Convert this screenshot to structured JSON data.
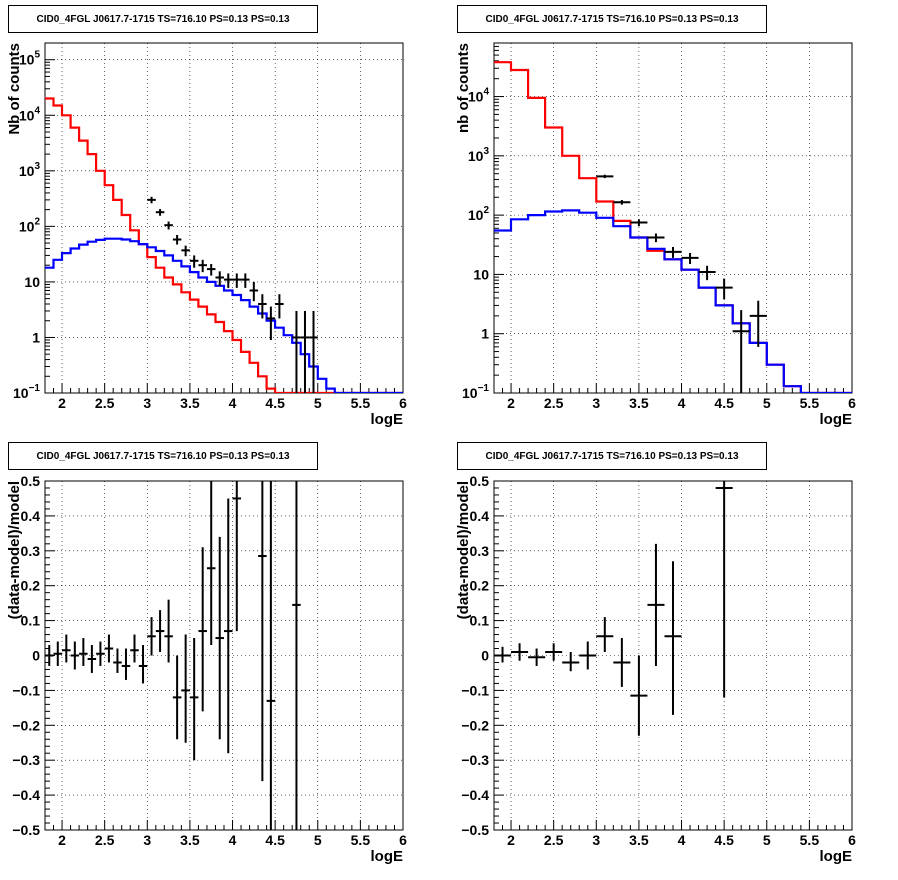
{
  "chart_data": [
    {
      "id": "top-left",
      "type": "line",
      "title": "CID0_4FGL J0617.7-1715 TS=716.10 PS=0.13 PS=0.13",
      "xlabel": "logE",
      "ylabel": "Nb of counts",
      "xlim": [
        1.8,
        6.0
      ],
      "ylim": [
        0.1,
        200000
      ],
      "yscale": "log",
      "grid": true,
      "xticks": [
        "2",
        "2.5",
        "3",
        "3.5",
        "4",
        "4.5",
        "5",
        "5.5",
        "6"
      ],
      "yticks": [
        {
          "v": 0.1,
          "base": "10",
          "exp": "−1"
        },
        {
          "v": 1,
          "label": "1"
        },
        {
          "v": 10,
          "label": "10"
        },
        {
          "v": 100,
          "base": "10",
          "exp": "2"
        },
        {
          "v": 1000,
          "base": "10",
          "exp": "3"
        },
        {
          "v": 10000,
          "base": "10",
          "exp": "4"
        },
        {
          "v": 100000,
          "base": "10",
          "exp": "5"
        }
      ],
      "series": [
        {
          "color": "#ff0000",
          "style": "step",
          "bins": 0.1,
          "x0": 1.8,
          "values": [
            20000,
            15000,
            10000,
            6000,
            3500,
            2000,
            1000,
            550,
            300,
            160,
            85,
            48,
            28,
            18,
            12,
            9,
            6.5,
            4.8,
            3.6,
            2.6,
            1.9,
            1.3,
            0.9,
            0.55,
            0.35,
            0.2,
            0.12,
            0.1,
            0.1,
            0.1,
            0.1,
            0.1,
            0.1,
            0.1,
            0.1,
            0.1,
            0.1,
            0.1,
            0.1,
            0.1,
            0.1,
            0.1
          ]
        },
        {
          "color": "#0000ff",
          "style": "step",
          "bins": 0.1,
          "x0": 1.8,
          "values": [
            18,
            25,
            33,
            40,
            47,
            53,
            57,
            60,
            60,
            58,
            54,
            48,
            42,
            36,
            30,
            24,
            19,
            15,
            12,
            10,
            8.5,
            7,
            5.8,
            4.7,
            3.6,
            2.7,
            2.0,
            1.5,
            1.1,
            0.8,
            0.5,
            0.3,
            0.18,
            0.12,
            0.1,
            0.1,
            0.1,
            0.1,
            0.1,
            0.1,
            0.1,
            0.1
          ]
        },
        {
          "color": "#000000",
          "style": "errorbar",
          "xerr": 0.05,
          "points": [
            [
              3.05,
              300,
              260,
              340
            ],
            [
              3.15,
              180,
              155,
              205
            ],
            [
              3.25,
              105,
              88,
              122
            ],
            [
              3.35,
              58,
              47,
              70
            ],
            [
              3.45,
              37,
              29,
              45
            ],
            [
              3.55,
              24,
              18,
              30
            ],
            [
              3.65,
              20,
              15,
              25
            ],
            [
              3.75,
              17,
              13,
              21
            ],
            [
              3.85,
              12,
              8.5,
              15.5
            ],
            [
              3.95,
              11,
              7.8,
              14.2
            ],
            [
              4.05,
              11,
              7.8,
              14.2
            ],
            [
              4.15,
              11,
              7.8,
              14.2
            ],
            [
              4.25,
              7,
              4.5,
              10
            ],
            [
              4.35,
              4,
              2.2,
              6
            ],
            [
              4.45,
              2.2,
              0.9,
              3.6
            ],
            [
              4.55,
              4,
              2.2,
              6
            ],
            [
              4.75,
              1,
              0.1,
              3
            ],
            [
              4.85,
              1,
              0.1,
              3
            ],
            [
              4.95,
              1,
              0.1,
              3
            ]
          ]
        }
      ]
    },
    {
      "id": "top-right",
      "type": "line",
      "title": "CID0_4FGL J0617.7-1715 TS=716.10 PS=0.13 PS=0.13",
      "xlabel": "logE",
      "ylabel": "nb of counts",
      "xlim": [
        1.8,
        6.0
      ],
      "ylim": [
        0.1,
        80000
      ],
      "yscale": "log",
      "grid": true,
      "xticks": [
        "2",
        "2.5",
        "3",
        "3.5",
        "4",
        "4.5",
        "5",
        "5.5",
        "6"
      ],
      "yticks": [
        {
          "v": 0.1,
          "base": "10",
          "exp": "−1"
        },
        {
          "v": 1,
          "label": "1"
        },
        {
          "v": 10,
          "label": "10"
        },
        {
          "v": 100,
          "base": "10",
          "exp": "2"
        },
        {
          "v": 1000,
          "base": "10",
          "exp": "3"
        },
        {
          "v": 10000,
          "base": "10",
          "exp": "4"
        }
      ],
      "series": [
        {
          "color": "#ff0000",
          "style": "step",
          "bins": 0.2,
          "x0": 1.8,
          "values": [
            38000,
            28000,
            9500,
            3000,
            1000,
            420,
            170,
            80,
            42,
            25,
            18,
            12,
            6,
            3,
            1.5,
            0.7,
            0.3,
            0.13,
            0.1,
            0.1,
            0.1
          ]
        },
        {
          "color": "#0000ff",
          "style": "step",
          "bins": 0.2,
          "x0": 1.8,
          "values": [
            55,
            85,
            100,
            115,
            120,
            110,
            90,
            65,
            42,
            27,
            18,
            12,
            6,
            3,
            1.5,
            0.7,
            0.3,
            0.13,
            0.1,
            0.1,
            0.1
          ]
        },
        {
          "color": "#000000",
          "style": "errorbar",
          "xerr": 0.1,
          "points": [
            [
              3.1,
              450,
              420,
              480
            ],
            [
              3.3,
              165,
              150,
              180
            ],
            [
              3.5,
              75,
              65,
              85
            ],
            [
              3.7,
              42,
              35,
              49
            ],
            [
              3.9,
              24,
              19,
              29
            ],
            [
              4.1,
              19,
              15,
              23
            ],
            [
              4.3,
              11,
              8,
              14
            ],
            [
              4.5,
              6,
              3.8,
              8.5
            ],
            [
              4.7,
              1.1,
              0.1,
              2.5
            ],
            [
              4.9,
              2,
              0.6,
              3.6
            ]
          ]
        }
      ]
    },
    {
      "id": "bottom-left",
      "type": "scatter",
      "title": "CID0_4FGL J0617.7-1715 TS=716.10 PS=0.13 PS=0.13",
      "xlabel": "logE",
      "ylabel": "(data-model)/model",
      "xlim": [
        1.8,
        6.0
      ],
      "ylim": [
        -0.5,
        0.5
      ],
      "yscale": "linear",
      "grid": true,
      "xticks": [
        "2",
        "2.5",
        "3",
        "3.5",
        "4",
        "4.5",
        "5",
        "5.5",
        "6"
      ],
      "yticks": [
        {
          "v": -0.5,
          "label": "−0.5"
        },
        {
          "v": -0.4,
          "label": "−0.4"
        },
        {
          "v": -0.3,
          "label": "−0.3"
        },
        {
          "v": -0.2,
          "label": "−0.2"
        },
        {
          "v": -0.1,
          "label": "−0.1"
        },
        {
          "v": 0,
          "label": "0"
        },
        {
          "v": 0.1,
          "label": "0.1"
        },
        {
          "v": 0.2,
          "label": "0.2"
        },
        {
          "v": 0.3,
          "label": "0.3"
        },
        {
          "v": 0.4,
          "label": "0.4"
        },
        {
          "v": 0.5,
          "label": "0.5"
        }
      ],
      "series": [
        {
          "color": "#000000",
          "style": "errorbar",
          "xerr": 0.05,
          "points": [
            [
              1.85,
              0.0,
              -0.03,
              0.03
            ],
            [
              1.95,
              0.005,
              -0.03,
              0.04
            ],
            [
              2.05,
              0.015,
              -0.02,
              0.06
            ],
            [
              2.15,
              0.0,
              -0.04,
              0.04
            ],
            [
              2.25,
              0.005,
              -0.03,
              0.05
            ],
            [
              2.35,
              -0.01,
              -0.05,
              0.03
            ],
            [
              2.45,
              0.005,
              -0.03,
              0.04
            ],
            [
              2.55,
              0.02,
              -0.02,
              0.06
            ],
            [
              2.65,
              -0.02,
              -0.05,
              0.02
            ],
            [
              2.75,
              -0.03,
              -0.07,
              0.02
            ],
            [
              2.85,
              0.015,
              -0.02,
              0.06
            ],
            [
              2.95,
              -0.03,
              -0.08,
              0.03
            ],
            [
              3.05,
              0.055,
              0.0,
              0.11
            ],
            [
              3.15,
              0.07,
              0.01,
              0.13
            ],
            [
              3.25,
              0.055,
              -0.02,
              0.16
            ],
            [
              3.35,
              -0.12,
              -0.24,
              0.0
            ],
            [
              3.45,
              -0.1,
              -0.25,
              0.06
            ],
            [
              3.55,
              -0.12,
              -0.3,
              0.05
            ],
            [
              3.65,
              0.07,
              -0.16,
              0.31
            ],
            [
              3.75,
              0.25,
              0.03,
              0.5
            ],
            [
              3.85,
              0.05,
              -0.24,
              0.34
            ],
            [
              3.95,
              0.07,
              -0.28,
              0.45
            ],
            [
              4.05,
              0.45,
              0.07,
              0.5
            ],
            [
              4.35,
              0.285,
              -0.36,
              0.5
            ],
            [
              4.45,
              -0.13,
              -0.5,
              0.5
            ],
            [
              4.75,
              0.145,
              -0.5,
              0.5
            ]
          ]
        }
      ]
    },
    {
      "id": "bottom-right",
      "type": "scatter",
      "title": "CID0_4FGL J0617.7-1715 TS=716.10 PS=0.13 PS=0.13",
      "xlabel": "logE",
      "ylabel": "(data-model)/model",
      "xlim": [
        1.8,
        6.0
      ],
      "ylim": [
        -0.5,
        0.5
      ],
      "yscale": "linear",
      "grid": true,
      "xticks": [
        "2",
        "2.5",
        "3",
        "3.5",
        "4",
        "4.5",
        "5",
        "5.5",
        "6"
      ],
      "yticks": [
        {
          "v": -0.5,
          "label": "−0.5"
        },
        {
          "v": -0.4,
          "label": "−0.4"
        },
        {
          "v": -0.3,
          "label": "−0.3"
        },
        {
          "v": -0.2,
          "label": "−0.2"
        },
        {
          "v": -0.1,
          "label": "−0.1"
        },
        {
          "v": 0,
          "label": "0"
        },
        {
          "v": 0.1,
          "label": "0.1"
        },
        {
          "v": 0.2,
          "label": "0.2"
        },
        {
          "v": 0.3,
          "label": "0.3"
        },
        {
          "v": 0.4,
          "label": "0.4"
        },
        {
          "v": 0.5,
          "label": "0.5"
        }
      ],
      "series": [
        {
          "color": "#000000",
          "style": "errorbar",
          "xerr": 0.1,
          "points": [
            [
              1.9,
              0.0,
              -0.02,
              0.025
            ],
            [
              2.1,
              0.01,
              -0.015,
              0.035
            ],
            [
              2.3,
              -0.005,
              -0.03,
              0.02
            ],
            [
              2.5,
              0.01,
              -0.015,
              0.035
            ],
            [
              2.7,
              -0.02,
              -0.045,
              0.01
            ],
            [
              2.9,
              0.0,
              -0.04,
              0.04
            ],
            [
              3.1,
              0.055,
              0.01,
              0.11
            ],
            [
              3.3,
              -0.02,
              -0.09,
              0.05
            ],
            [
              3.5,
              -0.115,
              -0.23,
              0.0
            ],
            [
              3.7,
              0.145,
              -0.03,
              0.32
            ],
            [
              3.9,
              0.055,
              -0.17,
              0.27
            ],
            [
              4.5,
              0.48,
              -0.12,
              0.5
            ]
          ]
        }
      ]
    }
  ]
}
